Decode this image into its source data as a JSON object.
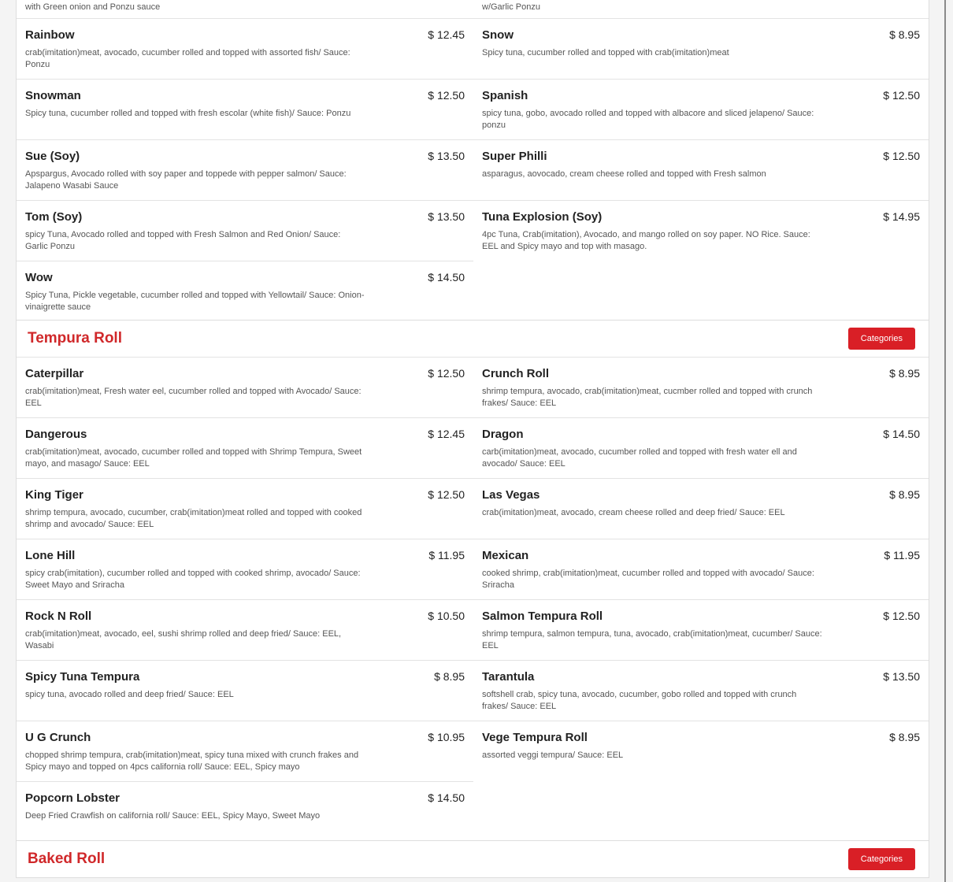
{
  "menu": {
    "sections": [
      {
        "continued_descriptions": [
          "with Green onion and Ponzu sauce",
          "w/Garlic Ponzu"
        ],
        "items": [
          {
            "name": "Rainbow",
            "price": "$ 12.45",
            "description": "crab(imitation)meat, avocado, cucumber rolled and topped with assorted fish/ Sauce: Ponzu"
          },
          {
            "name": "Snow",
            "price": "$ 8.95",
            "description": "Spicy tuna, cucumber rolled and topped with crab(imitation)meat"
          },
          {
            "name": "Snowman",
            "price": "$ 12.50",
            "description": "Spicy tuna, cucumber rolled and topped with fresh escolar (white fish)/ Sauce: Ponzu"
          },
          {
            "name": "Spanish",
            "price": "$ 12.50",
            "description": "spicy tuna, gobo, avocado rolled and topped with albacore and sliced jelapeno/ Sauce: ponzu"
          },
          {
            "name": "Sue (Soy)",
            "price": "$ 13.50",
            "description": "Apspargus, Avocado rolled with soy paper and toppede with pepper salmon/ Sauce: Jalapeno Wasabi Sauce"
          },
          {
            "name": "Super Philli",
            "price": "$ 12.50",
            "description": "asparagus, aovocado, cream cheese rolled and topped with Fresh salmon"
          },
          {
            "name": "Tom (Soy)",
            "price": "$ 13.50",
            "description": "spicy Tuna, Avocado rolled and topped with Fresh Salmon and Red Onion/ Sauce: Garlic Ponzu"
          },
          {
            "name": "Tuna Explosion (Soy)",
            "price": "$ 14.95",
            "description": "4pc Tuna, Crab(imitation), Avocado, and mango rolled on soy paper. NO Rice. Sauce: EEL and Spicy mayo and top with masago."
          },
          {
            "name": "Wow",
            "price": "$ 14.50",
            "description": "Spicy Tuna, Pickle vegetable, cucumber rolled and topped with Yellowtail/ Sauce: Onion-vinaigrette sauce"
          }
        ]
      },
      {
        "title": "Tempura Roll",
        "button": "Categories",
        "items": [
          {
            "name": "Caterpillar",
            "price": "$ 12.50",
            "description": "crab(imitation)meat, Fresh water eel, cucumber rolled and topped with Avocado/ Sauce: EEL"
          },
          {
            "name": "Crunch Roll",
            "price": "$ 8.95",
            "description": "shrimp tempura, avocado, crab(imitation)meat, cucmber rolled and topped with crunch frakes/ Sauce: EEL"
          },
          {
            "name": "Dangerous",
            "price": "$ 12.45",
            "description": "crab(imitation)meat, avocado, cucumber rolled and topped with Shrimp Tempura, Sweet mayo, and masago/ Sauce: EEL"
          },
          {
            "name": "Dragon",
            "price": "$ 14.50",
            "description": "carb(imitation)meat, avocado, cucumber rolled and topped with fresh water ell and avocado/ Sauce: EEL"
          },
          {
            "name": "King Tiger",
            "price": "$ 12.50",
            "description": "shrimp tempura, avocado, cucumber, crab(imitation)meat rolled and topped with cooked shrimp and avocado/ Sauce: EEL"
          },
          {
            "name": "Las Vegas",
            "price": "$ 8.95",
            "description": "crab(imitation)meat, avocado, cream cheese rolled and deep fried/ Sauce: EEL"
          },
          {
            "name": "Lone Hill",
            "price": "$ 11.95",
            "description": "spicy crab(imitation), cucumber rolled and topped with cooked shrimp, avocado/ Sauce: Sweet Mayo and Sriracha"
          },
          {
            "name": "Mexican",
            "price": "$ 11.95",
            "description": "cooked shrimp, crab(imitation)meat, cucumber rolled and topped with avocado/ Sauce: Sriracha"
          },
          {
            "name": "Rock N Roll",
            "price": "$ 10.50",
            "description": "crab(imitation)meat, avocado, eel, sushi shrimp rolled and deep fried/ Sauce: EEL, Wasabi"
          },
          {
            "name": "Salmon Tempura Roll",
            "price": "$ 12.50",
            "description": "shrimp tempura, salmon tempura, tuna, avocado, crab(imitation)meat, cucumber/ Sauce: EEL"
          },
          {
            "name": "Spicy Tuna Tempura",
            "price": "$ 8.95",
            "description": "spicy tuna, avocado rolled and deep fried/ Sauce: EEL"
          },
          {
            "name": "Tarantula",
            "price": "$ 13.50",
            "description": "softshell crab, spicy tuna, avocado, cucumber, gobo rolled and topped with crunch frakes/ Sauce: EEL"
          },
          {
            "name": "U G Crunch",
            "price": "$ 10.95",
            "description": "chopped shrimp tempura, crab(imitation)meat, spicy tuna mixed with crunch frakes and Spicy mayo and topped on 4pcs california roll/ Sauce: EEL, Spicy mayo"
          },
          {
            "name": "Vege Tempura Roll",
            "price": "$ 8.95",
            "description": "assorted veggi tempura/ Sauce: EEL"
          },
          {
            "name": "Popcorn Lobster",
            "price": "$ 14.50",
            "description": "Deep Fried Crawfish on california roll/ Sauce: EEL, Spicy Mayo, Sweet Mayo"
          }
        ]
      },
      {
        "title": "Baked Roll",
        "button": "Categories"
      }
    ]
  }
}
